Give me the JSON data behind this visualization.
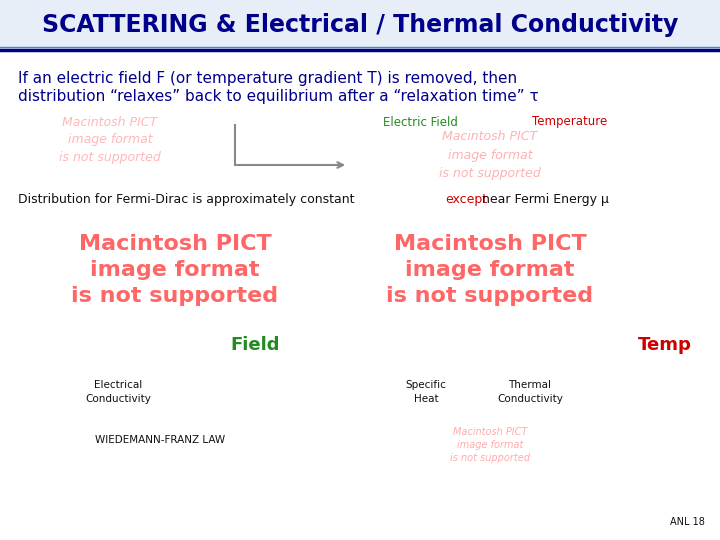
{
  "title": "SCATTERING & Electrical / Thermal Conductivity",
  "title_color": "#00008B",
  "title_fontsize": 17,
  "bg_color": "#FFFFFF",
  "header_line_color": "#000080",
  "body_text_1_line1": "If an electric field F (or temperature gradient T) is removed, then",
  "body_text_1_line2": "distribution “relaxes” back to equilibrium after a “relaxation time” τ",
  "body_text_1_color": "#00008B",
  "body_text_1_fontsize": 11,
  "label_electric_field": "Electric Field",
  "label_electric_field_color": "#228B22",
  "label_temperature": "Temperature",
  "label_temperature_color": "#CC0000",
  "label_fontsize": 8.5,
  "fermi_text_pre": "Distribution for Fermi-Dirac is approximately constant ",
  "fermi_text_except": "except",
  "fermi_text_post": " near Fermi Energy μ",
  "fermi_text_color": "#111111",
  "fermi_text_except_color": "#CC0000",
  "fermi_fontsize": 9,
  "field_label": "Field",
  "field_label_color": "#228B22",
  "field_label_fontsize": 13,
  "temp_label": "Temp",
  "temp_label_color": "#CC0000",
  "temp_label_fontsize": 13,
  "elec_cond_label": "Electrical\nConductivity",
  "elec_cond_fontsize": 7.5,
  "elec_cond_color": "#111111",
  "spec_heat_label": "Specific\nHeat",
  "spec_heat_fontsize": 7.5,
  "spec_heat_color": "#111111",
  "therm_cond_label": "Thermal\nConductivity",
  "therm_cond_fontsize": 7.5,
  "therm_cond_color": "#111111",
  "wiedemann_label": "WIEDEMANN-FRANZ LAW",
  "wiedemann_fontsize": 7.5,
  "wiedemann_color": "#111111",
  "pict_text_large": "Macintosh PICT\nimage format\nis not supported",
  "pict_text_small": "Macintosh PICT\nimage format\nis not supported",
  "pict_color_large": "#FF6666",
  "pict_color_small": "#FF8888",
  "pict_fontsize_large": 16,
  "pict_fontsize_mid": 9,
  "pict_fontsize_small": 7,
  "anl_label": "ANL 18",
  "anl_fontsize": 7,
  "anl_color": "#111111",
  "arrow_color": "#888888",
  "title_bg_color": "#E8EEF8",
  "title_underline_color": "#000080"
}
